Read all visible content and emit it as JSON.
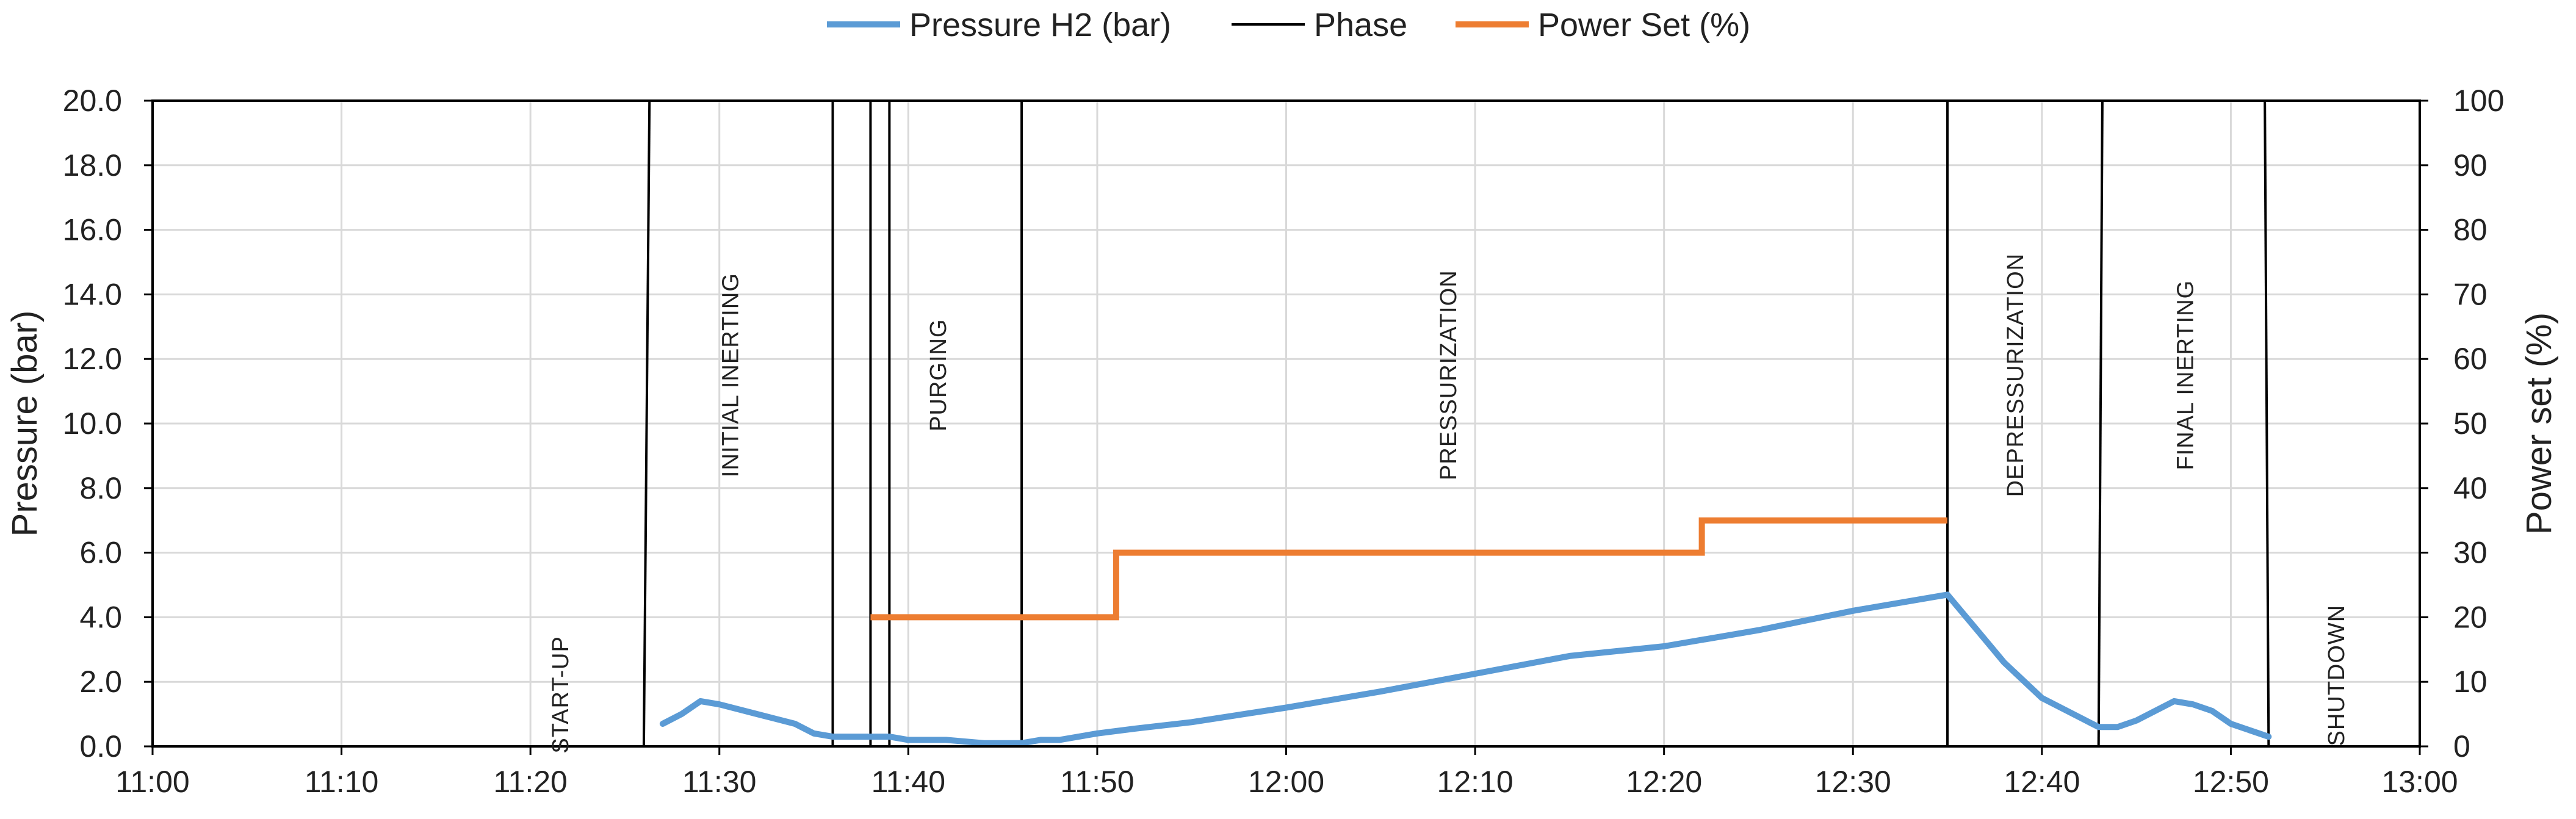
{
  "chart_data": {
    "type": "line",
    "legend": {
      "placement": "top-center"
    },
    "colors": {
      "pressure": "#5b9bd5",
      "phase": "#000000",
      "power": "#ed7d31",
      "grid": "#d9d9d9"
    },
    "x_axis": {
      "type": "time",
      "ticks": [
        "11:00",
        "11:10",
        "11:20",
        "11:30",
        "11:40",
        "11:50",
        "12:00",
        "12:10",
        "12:20",
        "12:30",
        "12:40",
        "12:50",
        "13:00"
      ],
      "range": [
        "11:00",
        "13:00"
      ]
    },
    "y_left": {
      "label": "Pressure (bar)",
      "range": [
        0,
        20
      ],
      "ticks": [
        "0.0",
        "2.0",
        "4.0",
        "6.0",
        "8.0",
        "10.0",
        "12.0",
        "14.0",
        "16.0",
        "18.0",
        "20.0"
      ]
    },
    "y_right": {
      "label": "Power set (%)",
      "range": [
        0,
        100
      ],
      "ticks": [
        "0",
        "10",
        "20",
        "30",
        "40",
        "50",
        "60",
        "70",
        "80",
        "90",
        "100"
      ]
    },
    "grid": true,
    "series": [
      {
        "name": "Pressure H2 (bar)",
        "axis": "left",
        "points": [
          [
            "11:27",
            0.7
          ],
          [
            "11:28",
            1.0
          ],
          [
            "11:29",
            1.4
          ],
          [
            "11:30",
            1.3
          ],
          [
            "11:32",
            1.0
          ],
          [
            "11:34",
            0.7
          ],
          [
            "11:35",
            0.4
          ],
          [
            "11:36",
            0.3
          ],
          [
            "11:38",
            0.3
          ],
          [
            "11:39",
            0.3
          ],
          [
            "11:40",
            0.2
          ],
          [
            "11:42",
            0.2
          ],
          [
            "11:44",
            0.1
          ],
          [
            "11:46",
            0.1
          ],
          [
            "11:47",
            0.2
          ],
          [
            "11:48",
            0.2
          ],
          [
            "11:50",
            0.4
          ],
          [
            "11:52",
            0.55
          ],
          [
            "11:55",
            0.75
          ],
          [
            "12:00",
            1.2
          ],
          [
            "12:05",
            1.7
          ],
          [
            "12:10",
            2.25
          ],
          [
            "12:15",
            2.8
          ],
          [
            "12:20",
            3.1
          ],
          [
            "12:25",
            3.6
          ],
          [
            "12:30",
            4.2
          ],
          [
            "12:35",
            4.7
          ],
          [
            "12:37",
            3.3
          ],
          [
            "12:38",
            2.6
          ],
          [
            "12:40",
            1.5
          ],
          [
            "12:42",
            0.9
          ],
          [
            "12:43",
            0.6
          ],
          [
            "12:44",
            0.6
          ],
          [
            "12:45",
            0.8
          ],
          [
            "12:47",
            1.4
          ],
          [
            "12:48",
            1.3
          ],
          [
            "12:49",
            1.1
          ],
          [
            "12:50",
            0.7
          ],
          [
            "12:52",
            0.3
          ]
        ]
      },
      {
        "name": "Power Set (%)",
        "axis": "right",
        "step_points": [
          [
            "11:38",
            20
          ],
          [
            "11:51",
            20
          ],
          [
            "11:51",
            30
          ],
          [
            "12:22",
            30
          ],
          [
            "12:22",
            35
          ],
          [
            "12:35",
            35
          ]
        ]
      }
    ],
    "phase_series": {
      "name": "Phase",
      "lines": [
        {
          "x_bottom": "11:26",
          "x_top": "11:26.3"
        },
        {
          "x_bottom": "11:36",
          "x_top": "11:36"
        },
        {
          "x_bottom": "11:38",
          "x_top": "11:38"
        },
        {
          "x_bottom": "11:39",
          "x_top": "11:39"
        },
        {
          "x_bottom": "11:46",
          "x_top": "11:46"
        },
        {
          "x_bottom": "12:35",
          "x_top": "12:35"
        },
        {
          "x_bottom": "12:43",
          "x_top": "12:43.2"
        },
        {
          "x_bottom": "12:52",
          "x_top": "12:51.8"
        }
      ]
    },
    "annotations": [
      {
        "text": "START-UP",
        "x": "11:22",
        "y": 1.6
      },
      {
        "text": "INITIAL INERTING",
        "x": "11:31",
        "y": 11.5
      },
      {
        "text": "PURGING",
        "x": "11:42",
        "y": 11.5
      },
      {
        "text": "PRESSURIZATION",
        "x": "12:09",
        "y": 11.5
      },
      {
        "text": "DEPRESSURIZATION",
        "x": "12:39",
        "y": 11.5
      },
      {
        "text": "FINAL INERTING",
        "x": "12:48",
        "y": 11.5
      },
      {
        "text": "SHUTDOWN",
        "x": "12:56",
        "y": 2.2
      }
    ]
  }
}
